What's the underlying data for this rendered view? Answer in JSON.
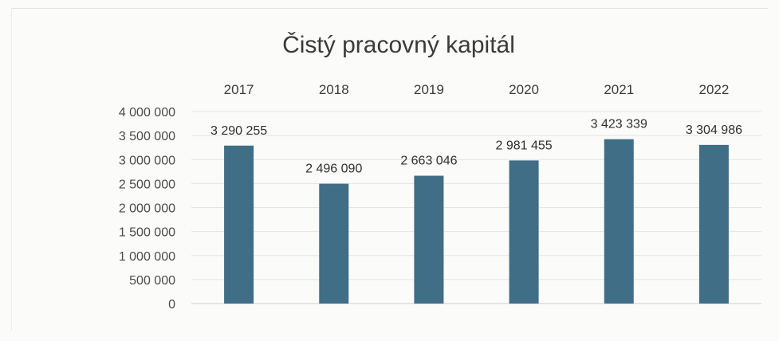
{
  "chart_data": {
    "type": "bar",
    "title": "Čistý pracovný kapitál",
    "xlabel": "",
    "ylabel": "",
    "categories": [
      "2017",
      "2018",
      "2019",
      "2020",
      "2021",
      "2022"
    ],
    "values": [
      3290255,
      2496090,
      2663046,
      2981455,
      3423339,
      3304986
    ],
    "value_labels": [
      "3 290 255",
      "2 496 090",
      "2 663 046",
      "2 981 455",
      "3 423 339",
      "3 304 986"
    ],
    "ylim": [
      0,
      4000000
    ],
    "yticks": [
      0,
      500000,
      1000000,
      1500000,
      2000000,
      2500000,
      3000000,
      3500000,
      4000000
    ],
    "ytick_labels": [
      "0",
      "500 000",
      "1 000 000",
      "1 500 000",
      "2 000 000",
      "2 500 000",
      "3 000 000",
      "3 500 000",
      "4 000 000"
    ],
    "grid": true,
    "legend": "none",
    "category_axis_position": "top",
    "bar_color": "#3f6e86",
    "grid_color": "#e4e4e4"
  }
}
